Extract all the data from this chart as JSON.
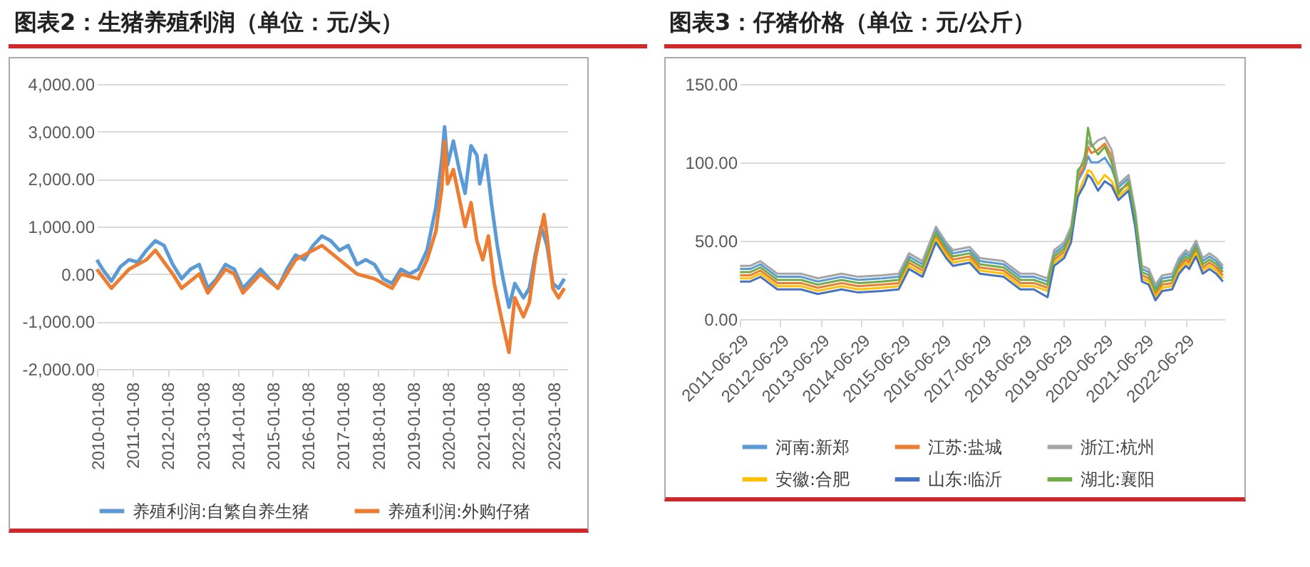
{
  "chart_data": [
    {
      "type": "line",
      "title": "图表2：生猪养殖利润（单位：元/头）",
      "xlim": [
        "2010-01-01",
        "2023-06-01"
      ],
      "xticks": [
        "2010-01-08",
        "2011-01-08",
        "2012-01-08",
        "2013-01-08",
        "2014-01-08",
        "2015-01-08",
        "2016-01-08",
        "2017-01-08",
        "2018-01-08",
        "2019-01-08",
        "2020-01-08",
        "2021-01-08",
        "2022-01-08",
        "2023-01-08"
      ],
      "ylim": [
        -2000,
        4000
      ],
      "yticks": [
        {
          "value": -2000,
          "label": "-2,000.00"
        },
        {
          "value": -1000,
          "label": "-1,000.00"
        },
        {
          "value": 0,
          "label": "0.00"
        },
        {
          "value": 1000,
          "label": "1,000.00"
        },
        {
          "value": 2000,
          "label": "2,000.00"
        },
        {
          "value": 3000,
          "label": "3,000.00"
        },
        {
          "value": 4000,
          "label": "4,000.00"
        }
      ],
      "grid": "y",
      "legend": "bottom",
      "series": [
        {
          "name": "养殖利润:自繁自养生猪",
          "color": "#5b9bd5",
          "x": [
            "2010-01",
            "2010-03",
            "2010-06",
            "2010-09",
            "2010-12",
            "2011-03",
            "2011-06",
            "2011-09",
            "2011-12",
            "2012-03",
            "2012-06",
            "2012-09",
            "2012-12",
            "2013-03",
            "2013-06",
            "2013-09",
            "2013-12",
            "2014-03",
            "2014-06",
            "2014-09",
            "2014-12",
            "2015-03",
            "2015-06",
            "2015-09",
            "2015-12",
            "2016-03",
            "2016-06",
            "2016-09",
            "2016-12",
            "2017-03",
            "2017-06",
            "2017-09",
            "2017-12",
            "2018-03",
            "2018-06",
            "2018-09",
            "2018-12",
            "2019-03",
            "2019-06",
            "2019-09",
            "2019-11",
            "2019-12",
            "2020-01",
            "2020-03",
            "2020-05",
            "2020-07",
            "2020-09",
            "2020-11",
            "2020-12",
            "2021-02",
            "2021-04",
            "2021-06",
            "2021-08",
            "2021-10",
            "2021-12",
            "2022-03",
            "2022-05",
            "2022-07",
            "2022-09",
            "2022-11",
            "2023-01",
            "2023-03",
            "2023-05"
          ],
          "values": [
            300,
            100,
            -150,
            150,
            300,
            250,
            500,
            700,
            600,
            200,
            -100,
            100,
            200,
            -300,
            -100,
            200,
            100,
            -300,
            -100,
            100,
            -100,
            -300,
            100,
            400,
            300,
            600,
            800,
            700,
            500,
            600,
            200,
            300,
            200,
            -100,
            -200,
            100,
            0,
            100,
            500,
            1400,
            2400,
            3100,
            2300,
            2800,
            2200,
            1700,
            2700,
            2500,
            1900,
            2500,
            1500,
            600,
            -100,
            -700,
            -200,
            -500,
            -300,
            400,
            1000,
            600,
            -200,
            -300,
            -100
          ]
        },
        {
          "name": "养殖利润:外购仔猪",
          "color": "#ed7d31",
          "x": [
            "2010-01",
            "2010-06",
            "2010-12",
            "2011-06",
            "2011-09",
            "2012-03",
            "2012-06",
            "2012-12",
            "2013-03",
            "2013-09",
            "2013-12",
            "2014-03",
            "2014-09",
            "2015-03",
            "2015-09",
            "2016-06",
            "2016-12",
            "2017-06",
            "2017-12",
            "2018-03",
            "2018-06",
            "2018-09",
            "2019-03",
            "2019-06",
            "2019-09",
            "2019-11",
            "2019-12",
            "2020-01",
            "2020-03",
            "2020-05",
            "2020-07",
            "2020-09",
            "2020-11",
            "2021-01",
            "2021-03",
            "2021-05",
            "2021-07",
            "2021-10",
            "2021-12",
            "2022-03",
            "2022-05",
            "2022-07",
            "2022-10",
            "2022-11",
            "2023-01",
            "2023-03",
            "2023-05"
          ],
          "values": [
            100,
            -300,
            100,
            300,
            500,
            0,
            -300,
            0,
            -400,
            100,
            0,
            -400,
            0,
            -300,
            300,
            600,
            300,
            0,
            -100,
            -200,
            -300,
            0,
            -100,
            300,
            900,
            1800,
            2800,
            1900,
            2200,
            1600,
            1000,
            1500,
            700,
            300,
            800,
            -200,
            -800,
            -1650,
            -500,
            -900,
            -600,
            300,
            1250,
            800,
            -300,
            -500,
            -300
          ]
        }
      ]
    },
    {
      "type": "line",
      "title": "图表3：仔猪价格（单位：元/公斤）",
      "xlim": [
        "2011-06-29",
        "2023-06-15"
      ],
      "xticks": [
        "2011-06-29",
        "2012-06-29",
        "2013-06-29",
        "2014-06-29",
        "2015-06-29",
        "2016-06-29",
        "2017-06-29",
        "2018-06-29",
        "2019-06-29",
        "2020-06-29",
        "2021-06-29",
        "2022-06-29"
      ],
      "ylim": [
        0,
        150
      ],
      "yticks": [
        {
          "value": 0,
          "label": "0.00"
        },
        {
          "value": 50,
          "label": "50.00"
        },
        {
          "value": 100,
          "label": "100.00"
        },
        {
          "value": 150,
          "label": "150.00"
        }
      ],
      "grid": "y",
      "legend": "bottom",
      "x": [
        "2011-07",
        "2011-10",
        "2012-01",
        "2012-06",
        "2013-01",
        "2013-06",
        "2014-01",
        "2014-06",
        "2015-01",
        "2015-06",
        "2015-09",
        "2016-01",
        "2016-05",
        "2016-08",
        "2016-10",
        "2017-03",
        "2017-06",
        "2018-01",
        "2018-06",
        "2018-10",
        "2019-02",
        "2019-04",
        "2019-07",
        "2019-09",
        "2019-10",
        "2019-11",
        "2020-01",
        "2020-02",
        "2020-03",
        "2020-05",
        "2020-07",
        "2020-09",
        "2020-11",
        "2021-02",
        "2021-04",
        "2021-06",
        "2021-08",
        "2021-10",
        "2021-12",
        "2022-03",
        "2022-05",
        "2022-07",
        "2022-08",
        "2022-10",
        "2022-12",
        "2023-02",
        "2023-04",
        "2023-06"
      ],
      "series": [
        {
          "name": "河南:新郑",
          "color": "#5b9bd5",
          "values": [
            32,
            32,
            35,
            27,
            27,
            24,
            27,
            25,
            26,
            27,
            40,
            35,
            57,
            47,
            42,
            44,
            37,
            35,
            27,
            27,
            24,
            42,
            47,
            57,
            68,
            88,
            96,
            104,
            100,
            100,
            103,
            96,
            84,
            90,
            67,
            32,
            30,
            20,
            26,
            27,
            37,
            42,
            40,
            48,
            37,
            40,
            37,
            32
          ]
        },
        {
          "name": "江苏:盐城",
          "color": "#ed7d31",
          "values": [
            28,
            28,
            31,
            23,
            23,
            20,
            23,
            21,
            22,
            23,
            36,
            31,
            53,
            43,
            38,
            40,
            33,
            31,
            23,
            23,
            20,
            38,
            43,
            53,
            72,
            90,
            98,
            110,
            106,
            108,
            112,
            104,
            82,
            86,
            63,
            28,
            26,
            16,
            22,
            23,
            33,
            38,
            36,
            44,
            33,
            36,
            33,
            28
          ]
        },
        {
          "name": "浙江:杭州",
          "color": "#a5a5a5",
          "values": [
            34,
            34,
            37,
            29,
            29,
            26,
            29,
            27,
            28,
            29,
            42,
            37,
            59,
            49,
            44,
            46,
            39,
            37,
            29,
            29,
            26,
            44,
            49,
            59,
            74,
            92,
            104,
            114,
            110,
            114,
            116,
            108,
            86,
            92,
            69,
            34,
            32,
            22,
            28,
            29,
            39,
            44,
            42,
            50,
            39,
            42,
            39,
            34
          ]
        },
        {
          "name": "安徽:合肥",
          "color": "#ffc000",
          "values": [
            26,
            26,
            29,
            21,
            21,
            18,
            21,
            19,
            20,
            21,
            34,
            29,
            51,
            41,
            36,
            38,
            31,
            29,
            21,
            21,
            18,
            36,
            41,
            51,
            66,
            80,
            90,
            95,
            94,
            86,
            92,
            88,
            78,
            84,
            61,
            26,
            24,
            14,
            20,
            21,
            31,
            36,
            34,
            42,
            31,
            34,
            31,
            26
          ]
        },
        {
          "name": "山东:临沂",
          "color": "#4472c4",
          "values": [
            24,
            24,
            27,
            19,
            19,
            16,
            19,
            17,
            18,
            19,
            32,
            27,
            49,
            39,
            34,
            36,
            29,
            27,
            19,
            19,
            14,
            34,
            39,
            49,
            64,
            78,
            86,
            92,
            90,
            82,
            88,
            85,
            76,
            82,
            59,
            24,
            22,
            12,
            18,
            19,
            29,
            34,
            32,
            40,
            29,
            32,
            29,
            24
          ]
        },
        {
          "name": "湖北:襄阳",
          "color": "#70ad47",
          "values": [
            30,
            30,
            33,
            25,
            25,
            22,
            25,
            23,
            24,
            25,
            38,
            33,
            55,
            45,
            40,
            42,
            35,
            33,
            25,
            25,
            22,
            40,
            45,
            55,
            70,
            95,
            100,
            122,
            112,
            105,
            110,
            100,
            80,
            88,
            65,
            30,
            28,
            18,
            24,
            25,
            35,
            40,
            38,
            46,
            35,
            38,
            35,
            30
          ]
        }
      ]
    }
  ]
}
